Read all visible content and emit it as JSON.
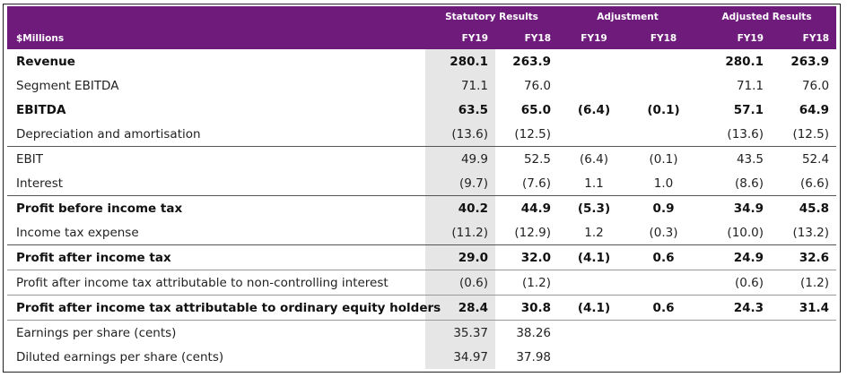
{
  "header": {
    "groups": [
      "Statutory Results",
      "Adjustment",
      "Adjusted Results"
    ],
    "unit_label": "$Millions",
    "years": [
      "FY19",
      "FY18",
      "FY19",
      "FY18",
      "FY19",
      "FY18"
    ]
  },
  "rows": [
    {
      "label": "Revenue",
      "bold": true,
      "values": [
        "280.1",
        "263.9",
        "",
        "",
        "280.1",
        "263.9"
      ]
    },
    {
      "label": "Segment EBITDA",
      "bold": false,
      "values": [
        "71.1",
        "76.0",
        "",
        "",
        "71.1",
        "76.0"
      ]
    },
    {
      "label": "EBITDA",
      "bold": true,
      "values": [
        "63.5",
        "65.0",
        "(6.4)",
        "(0.1)",
        "57.1",
        "64.9"
      ]
    },
    {
      "label": "Depreciation and amortisation",
      "bold": false,
      "values": [
        "(13.6)",
        "(12.5)",
        "",
        "",
        "(13.6)",
        "(12.5)"
      ]
    },
    {
      "label": "EBIT",
      "bold": false,
      "values": [
        "49.9",
        "52.5",
        "(6.4)",
        "(0.1)",
        "43.5",
        "52.4"
      ]
    },
    {
      "label": "Interest",
      "bold": false,
      "values": [
        "(9.7)",
        "(7.6)",
        "1.1",
        "1.0",
        "(8.6)",
        "(6.6)"
      ]
    },
    {
      "label": "Profit before income tax",
      "bold": true,
      "values": [
        "40.2",
        "44.9",
        "(5.3)",
        "0.9",
        "34.9",
        "45.8"
      ]
    },
    {
      "label": "Income tax expense",
      "bold": false,
      "values": [
        "(11.2)",
        "(12.9)",
        "1.2",
        "(0.3)",
        "(10.0)",
        "(13.2)"
      ]
    },
    {
      "label": "Profit after income tax",
      "bold": true,
      "values": [
        "29.0",
        "32.0",
        "(4.1)",
        "0.6",
        "24.9",
        "32.6"
      ]
    },
    {
      "label": "Profit after income tax attributable to non-controlling interest",
      "bold": false,
      "values": [
        "(0.6)",
        "(1.2)",
        "",
        "",
        "(0.6)",
        "(1.2)"
      ]
    },
    {
      "label": "Profit after income tax attributable to ordinary equity holders",
      "bold": true,
      "values": [
        "28.4",
        "30.8",
        "(4.1)",
        "0.6",
        "24.3",
        "31.4"
      ]
    },
    {
      "label": "Earnings per share (cents)",
      "bold": false,
      "values": [
        "35.37",
        "38.26",
        "",
        "",
        "",
        ""
      ]
    },
    {
      "label": "Diluted earnings per share (cents)",
      "bold": false,
      "values": [
        "34.97",
        "37.98",
        "",
        "",
        "",
        ""
      ]
    }
  ],
  "colors": {
    "header_bg": "#6e1b7c",
    "header_text": "#ffffff",
    "highlight_col": "#e6e6e6"
  }
}
